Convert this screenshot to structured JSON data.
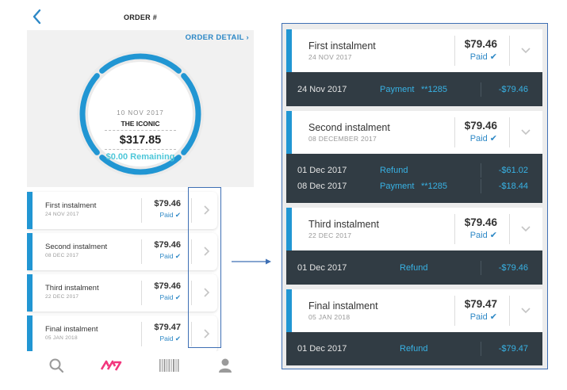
{
  "phone": {
    "title": "ORDER #",
    "order_detail_link": "ORDER DETAIL",
    "summary": {
      "date": "10 NOV 2017",
      "merchant": "THE ICONIC",
      "total": "$317.85",
      "remaining": "$0.00 Remaining",
      "paid_fraction": 1.0
    },
    "instalments": [
      {
        "name": "First instalment",
        "date": "24 NOV 2017",
        "amount": "$79.46",
        "status": "Paid"
      },
      {
        "name": "Second instalment",
        "date": "08 DEC 2017",
        "amount": "$79.46",
        "status": "Paid"
      },
      {
        "name": "Third instalment",
        "date": "22 DEC 2017",
        "amount": "$79.46",
        "status": "Paid"
      },
      {
        "name": "Final instalment",
        "date": "05 JAN 2018",
        "amount": "$79.47",
        "status": "Paid"
      }
    ],
    "tabs": [
      {
        "icon": "search-icon"
      },
      {
        "icon": "afterpay-logo-icon"
      },
      {
        "icon": "barcode-icon"
      },
      {
        "icon": "profile-icon"
      }
    ]
  },
  "zoom": {
    "instalments": [
      {
        "name": "First instalment",
        "date": "24 NOV 2017",
        "amount": "$79.46",
        "status": "Paid",
        "transactions": [
          {
            "date": "24 Nov 2017",
            "type": "Payment",
            "card": "**1285",
            "amount": "-$79.46"
          }
        ]
      },
      {
        "name": "Second instalment",
        "date": "08 DECEMBER 2017",
        "amount": "$79.46",
        "status": "Paid",
        "transactions": [
          {
            "date": "01 Dec 2017",
            "type": "Refund",
            "card": "",
            "amount": "-$61.02"
          },
          {
            "date": "08 Dec 2017",
            "type": "Payment",
            "card": "**1285",
            "amount": "-$18.44"
          }
        ]
      },
      {
        "name": "Third instalment",
        "date": "22 DEC 2017",
        "amount": "$79.46",
        "status": "Paid",
        "transactions": [
          {
            "date": "01 Dec 2017",
            "type": "Refund",
            "card": "",
            "amount": "-$79.46"
          }
        ]
      },
      {
        "name": "Final instalment",
        "date": "05 JAN 2018",
        "amount": "$79.47",
        "status": "Paid",
        "transactions": [
          {
            "date": "01 Dec 2017",
            "type": "Refund",
            "card": "",
            "amount": "-$79.47"
          }
        ]
      }
    ]
  },
  "colors": {
    "accent_blue": "#2196d3",
    "link_blue": "#2d88c6",
    "remaining_teal": "#4ec7d9",
    "tx_background": "#313c44",
    "tx_text_blue": "#38b2e4",
    "logo_pink": "#f2367d"
  }
}
